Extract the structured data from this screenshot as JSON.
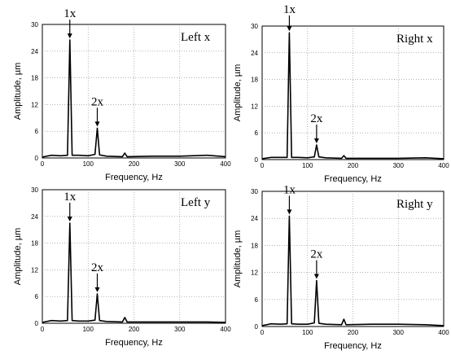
{
  "chart_data": [
    {
      "type": "line",
      "panel_label": "Left x",
      "xlabel": "Frequency, Hz",
      "ylabel": "Amplitude, µm",
      "xlim": [
        0,
        400
      ],
      "ylim": [
        0,
        30
      ],
      "xticks": [
        0,
        100,
        200,
        300,
        400
      ],
      "yticks": [
        0,
        6,
        12,
        18,
        24,
        30
      ],
      "ytick_labels": [
        "0",
        "6",
        "12",
        "18",
        "24",
        "30"
      ],
      "grid": true,
      "x": [
        0,
        20,
        40,
        55,
        60,
        65,
        80,
        100,
        115,
        120,
        125,
        140,
        175,
        180,
        185,
        240,
        300,
        360,
        400
      ],
      "y": [
        0.2,
        0.6,
        0.5,
        0.6,
        26.5,
        0.6,
        0.6,
        0.5,
        0.8,
        6.7,
        0.7,
        0.4,
        0.3,
        1.1,
        0.3,
        0.4,
        0.4,
        0.6,
        0.3
      ],
      "annotations": [
        {
          "text": "1x",
          "x": 60,
          "y": 26.5
        },
        {
          "text": "2x",
          "x": 120,
          "y": 6.7
        }
      ]
    },
    {
      "type": "line",
      "panel_label": "Right x",
      "xlabel": "Frequency, Hz",
      "ylabel": "Amplitude, µm",
      "xlim": [
        0,
        400
      ],
      "ylim": [
        0,
        30
      ],
      "xticks": [
        0,
        100,
        200,
        300,
        400
      ],
      "yticks": [
        0,
        6,
        12,
        18,
        24,
        30
      ],
      "ytick_labels": [
        "0",
        "6",
        "12",
        "18",
        "24",
        "30"
      ],
      "grid": true,
      "x": [
        0,
        20,
        40,
        55,
        60,
        65,
        80,
        100,
        115,
        120,
        125,
        140,
        175,
        180,
        185,
        240,
        300,
        360,
        400
      ],
      "y": [
        0.2,
        0.5,
        0.5,
        0.5,
        28.5,
        0.5,
        0.5,
        0.4,
        0.6,
        3.3,
        0.6,
        0.4,
        0.3,
        0.9,
        0.3,
        0.3,
        0.3,
        0.4,
        0.2
      ],
      "annotations": [
        {
          "text": "1x",
          "x": 60,
          "y": 28.5
        },
        {
          "text": "2x",
          "x": 120,
          "y": 3.3
        }
      ]
    },
    {
      "type": "line",
      "panel_label": "Left y",
      "xlabel": "Frequency, Hz",
      "ylabel": "Amplitude, µm",
      "xlim": [
        0,
        400
      ],
      "ylim": [
        0,
        30
      ],
      "xticks": [
        0,
        100,
        200,
        300,
        400
      ],
      "yticks": [
        0,
        6,
        12,
        18,
        24,
        30
      ],
      "ytick_labels": [
        "0",
        "6",
        "12",
        "18",
        "24",
        "30"
      ],
      "grid": true,
      "x": [
        0,
        20,
        40,
        55,
        60,
        65,
        80,
        100,
        115,
        120,
        125,
        140,
        175,
        180,
        185,
        240,
        300,
        360,
        400
      ],
      "y": [
        0.2,
        0.6,
        0.5,
        0.6,
        22.5,
        0.6,
        0.5,
        0.5,
        0.7,
        6.6,
        0.6,
        0.4,
        0.3,
        1.3,
        0.3,
        0.3,
        0.3,
        0.3,
        0.2
      ],
      "annotations": [
        {
          "text": "1x",
          "x": 60,
          "y": 22.5
        },
        {
          "text": "2x",
          "x": 120,
          "y": 6.6
        }
      ]
    },
    {
      "type": "line",
      "panel_label": "Right y",
      "xlabel": "Frequency, Hz",
      "ylabel": "Amplitude, µm",
      "xlim": [
        0,
        400
      ],
      "ylim": [
        0,
        30
      ],
      "xticks": [
        0,
        100,
        200,
        300,
        400
      ],
      "yticks": [
        0,
        6,
        12,
        18,
        24,
        30
      ],
      "ytick_labels": [
        "0",
        "6",
        "12",
        "18",
        "24",
        "30"
      ],
      "grid": true,
      "x": [
        0,
        20,
        40,
        55,
        60,
        65,
        80,
        100,
        115,
        120,
        125,
        140,
        175,
        180,
        185,
        240,
        300,
        360,
        400
      ],
      "y": [
        0.2,
        0.6,
        0.5,
        0.6,
        24.5,
        0.6,
        0.5,
        0.5,
        0.8,
        10.2,
        0.7,
        0.5,
        0.4,
        1.6,
        0.4,
        0.5,
        0.5,
        0.4,
        0.2
      ],
      "annotations": [
        {
          "text": "1x",
          "x": 60,
          "y": 24.5
        },
        {
          "text": "2x",
          "x": 120,
          "y": 10.2
        }
      ]
    }
  ]
}
